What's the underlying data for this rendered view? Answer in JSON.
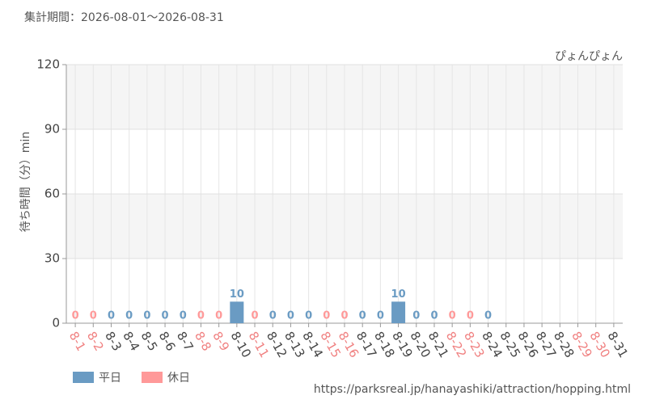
{
  "chart_data": {
    "type": "bar",
    "title": "集計期間：2026-08-01〜2026-08-31",
    "subtitle": "ぴょんぴょん",
    "y_label": "待ち時間（分）min",
    "source": "https://parksreal.jp/hanayashiki/attraction/hopping.html",
    "categories": [
      "8-1",
      "8-2",
      "8-3",
      "8-4",
      "8-5",
      "8-6",
      "8-7",
      "8-8",
      "8-9",
      "8-10",
      "8-11",
      "8-12",
      "8-13",
      "8-14",
      "8-15",
      "8-16",
      "8-17",
      "8-18",
      "8-19",
      "8-20",
      "8-21",
      "8-22",
      "8-23",
      "8-24",
      "8-25",
      "8-26",
      "8-27",
      "8-28",
      "8-29",
      "8-30",
      "8-31"
    ],
    "category_colors": [
      "#f08080",
      "#f08080",
      "#444",
      "#444",
      "#444",
      "#444",
      "#444",
      "#f08080",
      "#f08080",
      "#444",
      "#f08080",
      "#444",
      "#444",
      "#444",
      "#f08080",
      "#f08080",
      "#444",
      "#444",
      "#444",
      "#444",
      "#444",
      "#f08080",
      "#f08080",
      "#444",
      "#444",
      "#444",
      "#444",
      "#444",
      "#f08080",
      "#f08080",
      "#444"
    ],
    "series": [
      {
        "name": "平日",
        "color": "#6a9bc3",
        "values": [
          null,
          null,
          0,
          0,
          0,
          0,
          0,
          null,
          null,
          10,
          null,
          0,
          0,
          0,
          null,
          null,
          0,
          0,
          10,
          0,
          0,
          null,
          null,
          0,
          null,
          null,
          null,
          null,
          null,
          null,
          null
        ]
      },
      {
        "name": "休日",
        "color": "#ff9999",
        "values": [
          0,
          0,
          null,
          null,
          null,
          null,
          null,
          0,
          0,
          null,
          0,
          null,
          null,
          null,
          0,
          0,
          null,
          null,
          null,
          null,
          null,
          0,
          0,
          null,
          null,
          null,
          null,
          null,
          null,
          null,
          null
        ]
      }
    ],
    "ylim": [
      0,
      120
    ],
    "yticks": [
      0,
      30,
      60,
      90,
      120
    ],
    "grid": true
  }
}
